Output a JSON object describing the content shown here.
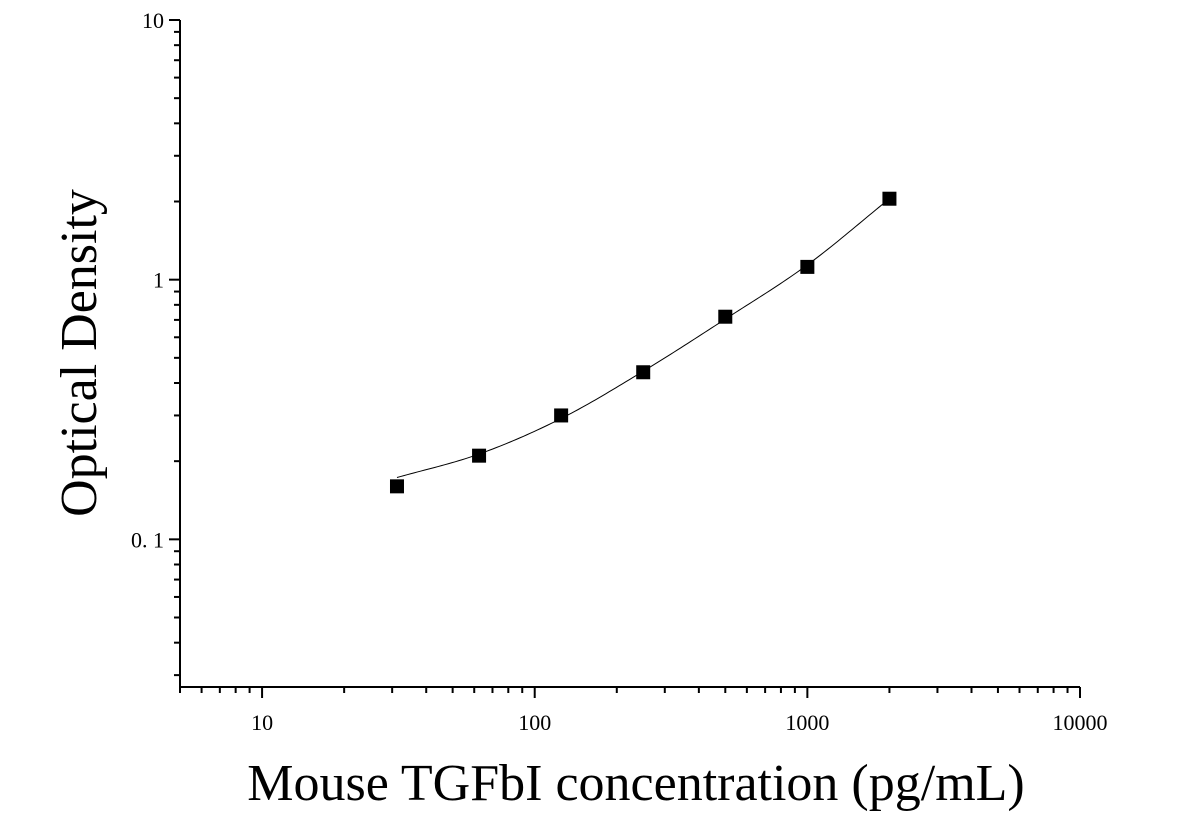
{
  "chart_data": {
    "type": "scatter",
    "xlabel": "Mouse TGFbI concentration (pg/mL)",
    "ylabel": "Optical Density",
    "x_scale": "log",
    "y_scale": "log",
    "xlim": [
      5,
      10000
    ],
    "ylim": [
      0.027,
      10
    ],
    "x_ticks": [
      10,
      100,
      1000,
      10000
    ],
    "x_tick_labels": [
      "10",
      "100",
      "1000",
      "10000"
    ],
    "y_ticks": [
      0.1,
      1,
      10
    ],
    "y_tick_labels": [
      "0. 1",
      "1",
      "10"
    ],
    "grid": false,
    "legend": "none",
    "series": [
      {
        "marker": "square",
        "x": [
          31.25,
          62.5,
          125,
          250,
          500,
          1000,
          2000
        ],
        "y": [
          0.16,
          0.21,
          0.3,
          0.44,
          0.72,
          1.12,
          2.05
        ]
      }
    ],
    "fit_curve": {
      "x": [
        31.25,
        62.5,
        125,
        250,
        500,
        1000,
        2000
      ],
      "y": [
        0.173,
        0.213,
        0.292,
        0.444,
        0.705,
        1.14,
        2.05
      ]
    },
    "colors": {
      "marker": "#000000",
      "line": "#000000",
      "axis": "#000000"
    }
  }
}
